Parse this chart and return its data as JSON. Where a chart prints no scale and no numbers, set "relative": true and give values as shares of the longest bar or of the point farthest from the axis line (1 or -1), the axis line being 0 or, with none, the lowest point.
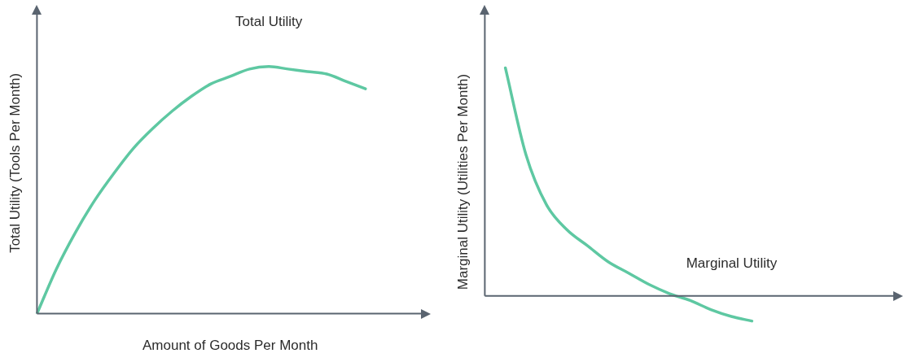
{
  "chart_data": [
    {
      "type": "line",
      "relative": true,
      "tick_labels": false,
      "grid": false,
      "marker": "none",
      "line_style": "solid",
      "xlabel": "Amount of Goods Per Month",
      "ylabel": "Total Utility (Tools Per Month)",
      "annotations": [
        "Total Utility"
      ],
      "categories": [
        null,
        null,
        null,
        null,
        null,
        null,
        null,
        null,
        null,
        null,
        null,
        null,
        null,
        null,
        null,
        null,
        null,
        null,
        null,
        null,
        null
      ],
      "series": [
        {
          "color": "#5ec8a2",
          "values": [
            0,
            0.18,
            0.33,
            0.46,
            0.57,
            0.67,
            0.75,
            0.82,
            0.88,
            0.93,
            0.96,
            0.99,
            1,
            0.99,
            0.98,
            0.97,
            0.94,
            0.91,
            null,
            null,
            null
          ]
        }
      ]
    },
    {
      "type": "line",
      "relative": true,
      "tick_labels": false,
      "grid": false,
      "marker": "none",
      "line_style": "solid",
      "ylabel": "Marginal Utility (Utilities Per Month)",
      "annotations": [
        "Marginal Utility"
      ],
      "categories": [
        null,
        null,
        null,
        null,
        null,
        null,
        null,
        null,
        null,
        null,
        null,
        null,
        null,
        null,
        null,
        null,
        null,
        null,
        null,
        null,
        null
      ],
      "series": [
        {
          "color": "#5ec8a2",
          "values": [
            null,
            1,
            0.62,
            0.4,
            0.29,
            0.22,
            0.15,
            0.1,
            0.05,
            0.01,
            -0.02,
            -0.06,
            -0.09,
            -0.11,
            null,
            null,
            null,
            null,
            null,
            null,
            null
          ]
        }
      ]
    }
  ]
}
